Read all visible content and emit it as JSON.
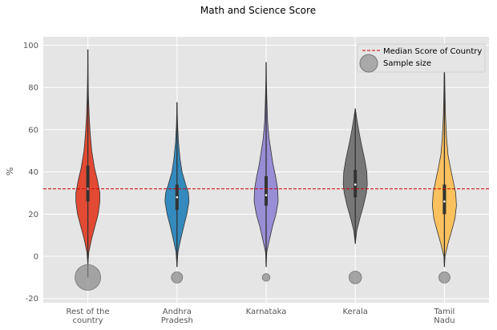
{
  "chart_data": {
    "type": "violin",
    "title": "Math and Science Score",
    "xlabel": "",
    "ylabel": "%",
    "ylim": [
      -22,
      104
    ],
    "yticks": [
      -20,
      0,
      20,
      40,
      60,
      80,
      100
    ],
    "grid": true,
    "legend_placement": "top-right",
    "categories": [
      "Rest of the country",
      "Andhra Pradesh",
      "Karnataka",
      "Kerala",
      "Tamil Nadu"
    ],
    "category_labels": [
      [
        "Rest of the",
        "country"
      ],
      [
        "Andhra",
        "Pradesh"
      ],
      [
        "Karnataka"
      ],
      [
        "Kerala"
      ],
      [
        "Tamil",
        "Nadu"
      ]
    ],
    "series": [
      {
        "color": "#E24A33",
        "range": [
          -10,
          98
        ],
        "q1": 26,
        "median": 32,
        "q3": 43,
        "profile": [
          [
            -4,
            0
          ],
          [
            2,
            0.08
          ],
          [
            8,
            0.3
          ],
          [
            14,
            0.58
          ],
          [
            20,
            0.86
          ],
          [
            26,
            1.0
          ],
          [
            30,
            1.0
          ],
          [
            36,
            0.8
          ],
          [
            42,
            0.55
          ],
          [
            50,
            0.32
          ],
          [
            58,
            0.2
          ],
          [
            66,
            0.11
          ],
          [
            76,
            0.05
          ],
          [
            86,
            0.02
          ],
          [
            98,
            0
          ]
        ],
        "sample_size": 1.0
      },
      {
        "color": "#348ABD",
        "range": [
          -5,
          73
        ],
        "q1": 22,
        "median": 28,
        "q3": 34,
        "profile": [
          [
            -5,
            0
          ],
          [
            2,
            0.08
          ],
          [
            8,
            0.3
          ],
          [
            14,
            0.55
          ],
          [
            20,
            0.82
          ],
          [
            26,
            1.0
          ],
          [
            30,
            0.95
          ],
          [
            34,
            0.72
          ],
          [
            40,
            0.42
          ],
          [
            46,
            0.26
          ],
          [
            54,
            0.12
          ],
          [
            62,
            0.05
          ],
          [
            73,
            0
          ]
        ],
        "sample_size": 0.19
      },
      {
        "color": "#988ED5",
        "range": [
          -5,
          92
        ],
        "q1": 24,
        "median": 29,
        "q3": 38,
        "profile": [
          [
            -5,
            0
          ],
          [
            2,
            0.05
          ],
          [
            8,
            0.28
          ],
          [
            14,
            0.52
          ],
          [
            20,
            0.82
          ],
          [
            26,
            1.0
          ],
          [
            32,
            0.96
          ],
          [
            38,
            0.78
          ],
          [
            44,
            0.56
          ],
          [
            50,
            0.4
          ],
          [
            56,
            0.24
          ],
          [
            64,
            0.12
          ],
          [
            74,
            0.06
          ],
          [
            84,
            0.02
          ],
          [
            92,
            0
          ]
        ],
        "sample_size": 0.09
      },
      {
        "color": "#777777",
        "range": [
          6,
          70
        ],
        "q1": 28,
        "median": 34,
        "q3": 41,
        "profile": [
          [
            6,
            0
          ],
          [
            12,
            0.12
          ],
          [
            18,
            0.38
          ],
          [
            24,
            0.68
          ],
          [
            30,
            0.92
          ],
          [
            34,
            1.0
          ],
          [
            40,
            0.96
          ],
          [
            46,
            0.78
          ],
          [
            52,
            0.55
          ],
          [
            58,
            0.34
          ],
          [
            64,
            0.16
          ],
          [
            70,
            0
          ]
        ],
        "sample_size": 0.24
      },
      {
        "color": "#FBC15E",
        "range": [
          -5,
          95
        ],
        "q1": 20,
        "median": 26,
        "q3": 34,
        "profile": [
          [
            -5,
            0
          ],
          [
            0,
            0.05
          ],
          [
            6,
            0.3
          ],
          [
            12,
            0.6
          ],
          [
            18,
            0.88
          ],
          [
            24,
            1.0
          ],
          [
            30,
            0.94
          ],
          [
            36,
            0.72
          ],
          [
            42,
            0.5
          ],
          [
            48,
            0.3
          ],
          [
            56,
            0.18
          ],
          [
            66,
            0.09
          ],
          [
            76,
            0.05
          ],
          [
            86,
            0.02
          ],
          [
            95,
            0
          ]
        ],
        "sample_size": 0.19
      }
    ],
    "reference_line": {
      "value": 32,
      "label": "Median Score of Country",
      "color": "#CC0000"
    },
    "sample_size_marker": {
      "y": -10,
      "color": "#888888",
      "label": "Sample size"
    }
  }
}
